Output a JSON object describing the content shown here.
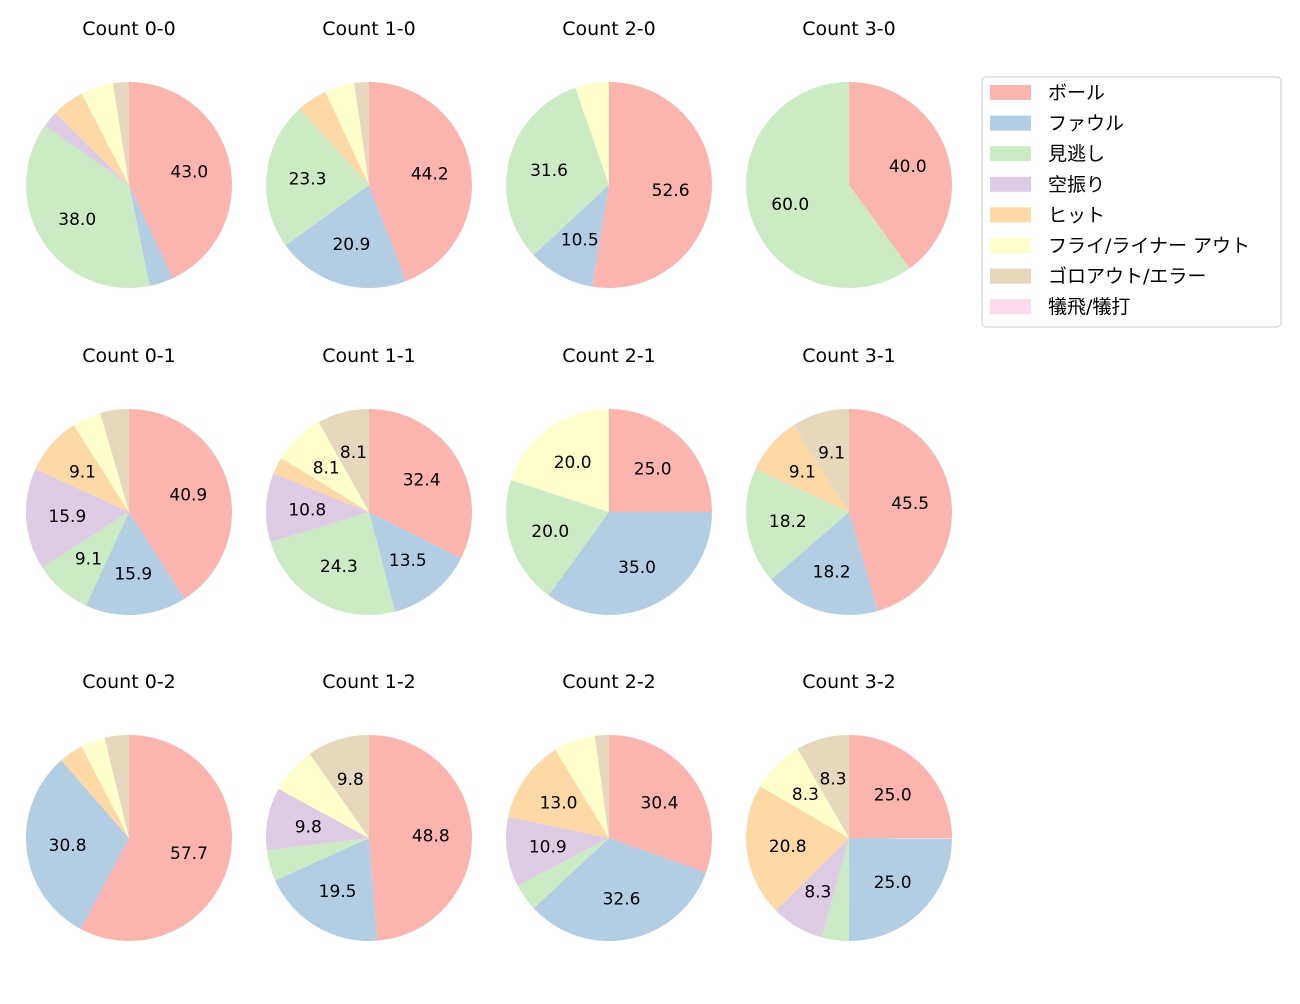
{
  "chart_data": {
    "type": "pie",
    "unit": "percent",
    "start_angle": "top",
    "direction": "clockwise",
    "label_threshold_percent": 8,
    "legend": {
      "placement": "upper-right",
      "entries": [
        "ボール",
        "ファウル",
        "見逃し",
        "空振り",
        "ヒット",
        "フライ/ライナー アウト",
        "ゴロアウト/エラー",
        "犠飛/犠打"
      ]
    },
    "colors": [
      "#fbb4ae",
      "#b3cde3",
      "#ccebc5",
      "#decbe4",
      "#fed9a6",
      "#ffffcc",
      "#e5d8bd",
      "#fddaec"
    ],
    "charts": [
      {
        "title": "Count 0-0",
        "values": [
          43.0,
          3.8,
          38.0,
          2.5,
          5.1,
          5.1,
          2.5,
          0
        ]
      },
      {
        "title": "Count 1-0",
        "values": [
          44.2,
          20.9,
          23.3,
          0,
          4.7,
          4.7,
          2.3,
          0
        ]
      },
      {
        "title": "Count 2-0",
        "values": [
          52.6,
          10.5,
          31.6,
          0,
          0,
          5.3,
          0,
          0
        ]
      },
      {
        "title": "Count 3-0",
        "values": [
          40.0,
          0,
          60.0,
          0,
          0,
          0,
          0,
          0
        ]
      },
      {
        "title": "Count 0-1",
        "values": [
          40.9,
          15.9,
          9.1,
          15.9,
          9.1,
          4.5,
          4.5,
          0
        ]
      },
      {
        "title": "Count 1-1",
        "values": [
          32.4,
          13.5,
          24.3,
          10.8,
          2.7,
          8.1,
          8.1,
          0
        ]
      },
      {
        "title": "Count 2-1",
        "values": [
          25.0,
          35.0,
          20.0,
          0,
          0,
          20.0,
          0,
          0
        ]
      },
      {
        "title": "Count 3-1",
        "values": [
          45.5,
          18.2,
          18.2,
          0,
          9.1,
          0,
          9.1,
          0
        ]
      },
      {
        "title": "Count 0-2",
        "values": [
          57.7,
          30.8,
          0,
          0,
          3.8,
          3.8,
          3.8,
          0
        ]
      },
      {
        "title": "Count 1-2",
        "values": [
          48.8,
          19.5,
          4.9,
          9.8,
          0,
          7.3,
          9.8,
          0
        ]
      },
      {
        "title": "Count 2-2",
        "values": [
          30.4,
          32.6,
          4.3,
          10.9,
          13.0,
          6.5,
          2.2,
          0
        ]
      },
      {
        "title": "Count 3-2",
        "values": [
          25.0,
          25.0,
          4.2,
          8.3,
          20.8,
          8.3,
          8.3,
          0
        ]
      }
    ]
  }
}
